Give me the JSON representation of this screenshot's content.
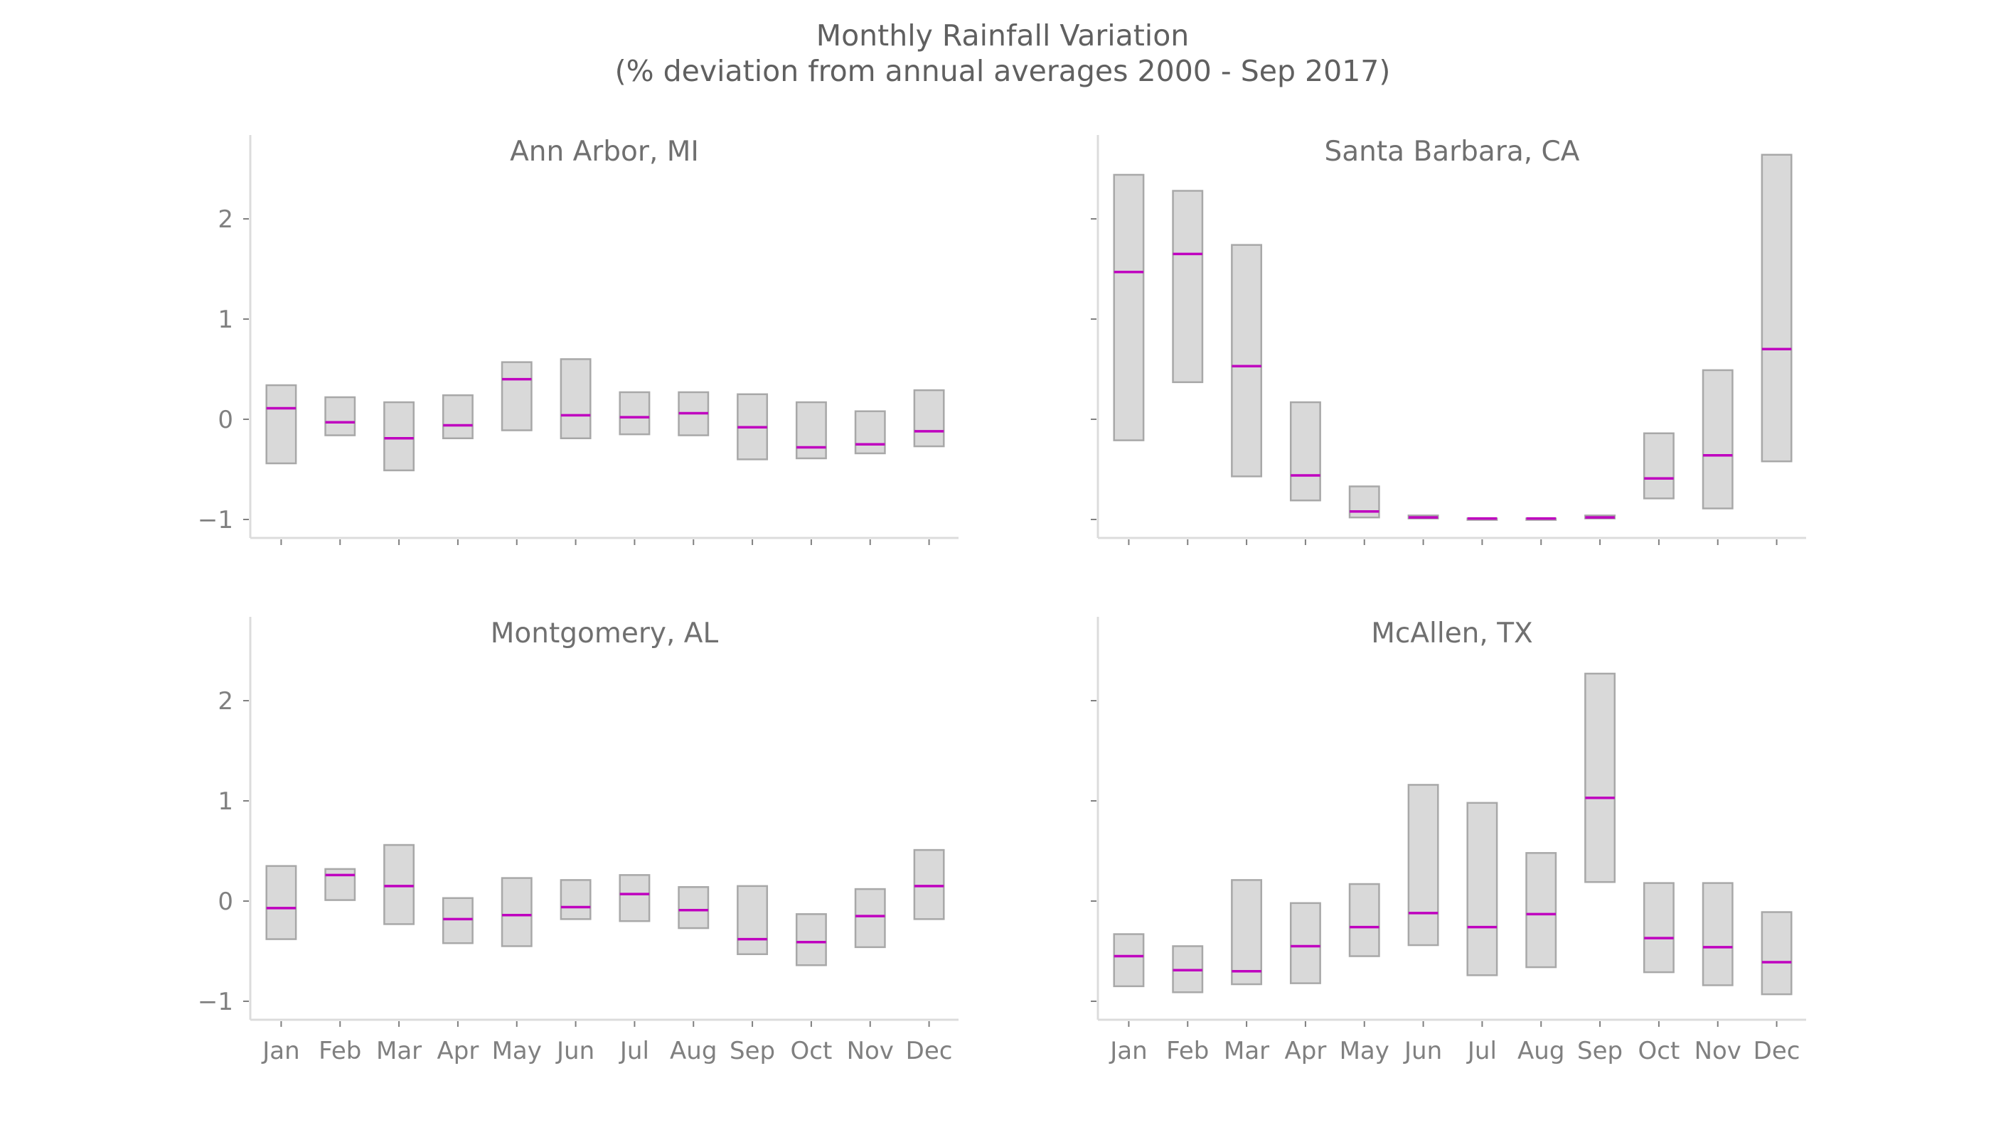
{
  "title_line1": "Monthly Rainfall Variation",
  "title_line2": "(% deviation from annual averages 2000 - Sep 2017)",
  "chart_data": [
    {
      "type": "box-range",
      "title": "Ann Arbor, MI",
      "categories": [
        "Jan",
        "Feb",
        "Mar",
        "Apr",
        "May",
        "Jun",
        "Jul",
        "Aug",
        "Sep",
        "Oct",
        "Nov",
        "Dec"
      ],
      "low": [
        -0.44,
        -0.16,
        -0.51,
        -0.19,
        -0.11,
        -0.19,
        -0.15,
        -0.16,
        -0.4,
        -0.39,
        -0.34,
        -0.27
      ],
      "high": [
        0.34,
        0.22,
        0.17,
        0.24,
        0.57,
        0.6,
        0.27,
        0.27,
        0.25,
        0.17,
        0.08,
        0.29
      ],
      "middle": [
        0.11,
        -0.03,
        -0.19,
        -0.06,
        0.4,
        0.04,
        0.02,
        0.06,
        -0.08,
        -0.28,
        -0.25,
        -0.12
      ],
      "yticks": [
        -1,
        0,
        1,
        2
      ],
      "ylim": [
        -1.18,
        2.82
      ],
      "show_xticklabels": false
    },
    {
      "type": "box-range",
      "title": "Santa Barbara, CA",
      "categories": [
        "Jan",
        "Feb",
        "Mar",
        "Apr",
        "May",
        "Jun",
        "Jul",
        "Aug",
        "Sep",
        "Oct",
        "Nov",
        "Dec"
      ],
      "low": [
        -0.21,
        0.37,
        -0.57,
        -0.81,
        -0.98,
        -0.99,
        -1.0,
        -1.0,
        -0.99,
        -0.79,
        -0.89,
        -0.42
      ],
      "high": [
        2.44,
        2.28,
        1.74,
        0.17,
        -0.67,
        -0.96,
        -0.99,
        -0.99,
        -0.96,
        -0.14,
        0.49,
        2.64
      ],
      "middle": [
        1.47,
        1.65,
        0.53,
        -0.56,
        -0.92,
        -0.98,
        -0.99,
        -0.99,
        -0.98,
        -0.59,
        -0.36,
        0.7
      ],
      "yticks": [
        -1,
        0,
        1,
        2
      ],
      "ylim": [
        -1.18,
        2.82
      ],
      "show_yticklabels": false,
      "show_xticklabels": false
    },
    {
      "type": "box-range",
      "title": "Montgomery, AL",
      "categories": [
        "Jan",
        "Feb",
        "Mar",
        "Apr",
        "May",
        "Jun",
        "Jul",
        "Aug",
        "Sep",
        "Oct",
        "Nov",
        "Dec"
      ],
      "low": [
        -0.38,
        0.01,
        -0.23,
        -0.42,
        -0.45,
        -0.18,
        -0.2,
        -0.27,
        -0.53,
        -0.64,
        -0.46,
        -0.18
      ],
      "high": [
        0.35,
        0.32,
        0.56,
        0.03,
        0.23,
        0.21,
        0.26,
        0.14,
        0.15,
        -0.13,
        0.12,
        0.51
      ],
      "middle": [
        -0.07,
        0.26,
        0.15,
        -0.18,
        -0.14,
        -0.06,
        0.07,
        -0.09,
        -0.38,
        -0.41,
        -0.15,
        0.15
      ],
      "yticks": [
        -1,
        0,
        1,
        2
      ],
      "ylim": [
        -1.18,
        2.82
      ],
      "show_xticklabels": true
    },
    {
      "type": "box-range",
      "title": "McAllen, TX",
      "categories": [
        "Jan",
        "Feb",
        "Mar",
        "Apr",
        "May",
        "Jun",
        "Jul",
        "Aug",
        "Sep",
        "Oct",
        "Nov",
        "Dec"
      ],
      "low": [
        -0.85,
        -0.91,
        -0.83,
        -0.82,
        -0.55,
        -0.44,
        -0.74,
        -0.66,
        0.19,
        -0.71,
        -0.84,
        -0.93
      ],
      "high": [
        -0.33,
        -0.45,
        0.21,
        -0.02,
        0.17,
        1.16,
        0.98,
        0.48,
        2.27,
        0.18,
        0.18,
        -0.11
      ],
      "middle": [
        -0.55,
        -0.69,
        -0.7,
        -0.45,
        -0.26,
        -0.12,
        -0.26,
        -0.13,
        1.03,
        -0.37,
        -0.46,
        -0.61
      ],
      "yticks": [
        -1,
        0,
        1,
        2
      ],
      "ylim": [
        -1.18,
        2.82
      ],
      "show_yticklabels": false,
      "show_xticklabels": true
    }
  ]
}
